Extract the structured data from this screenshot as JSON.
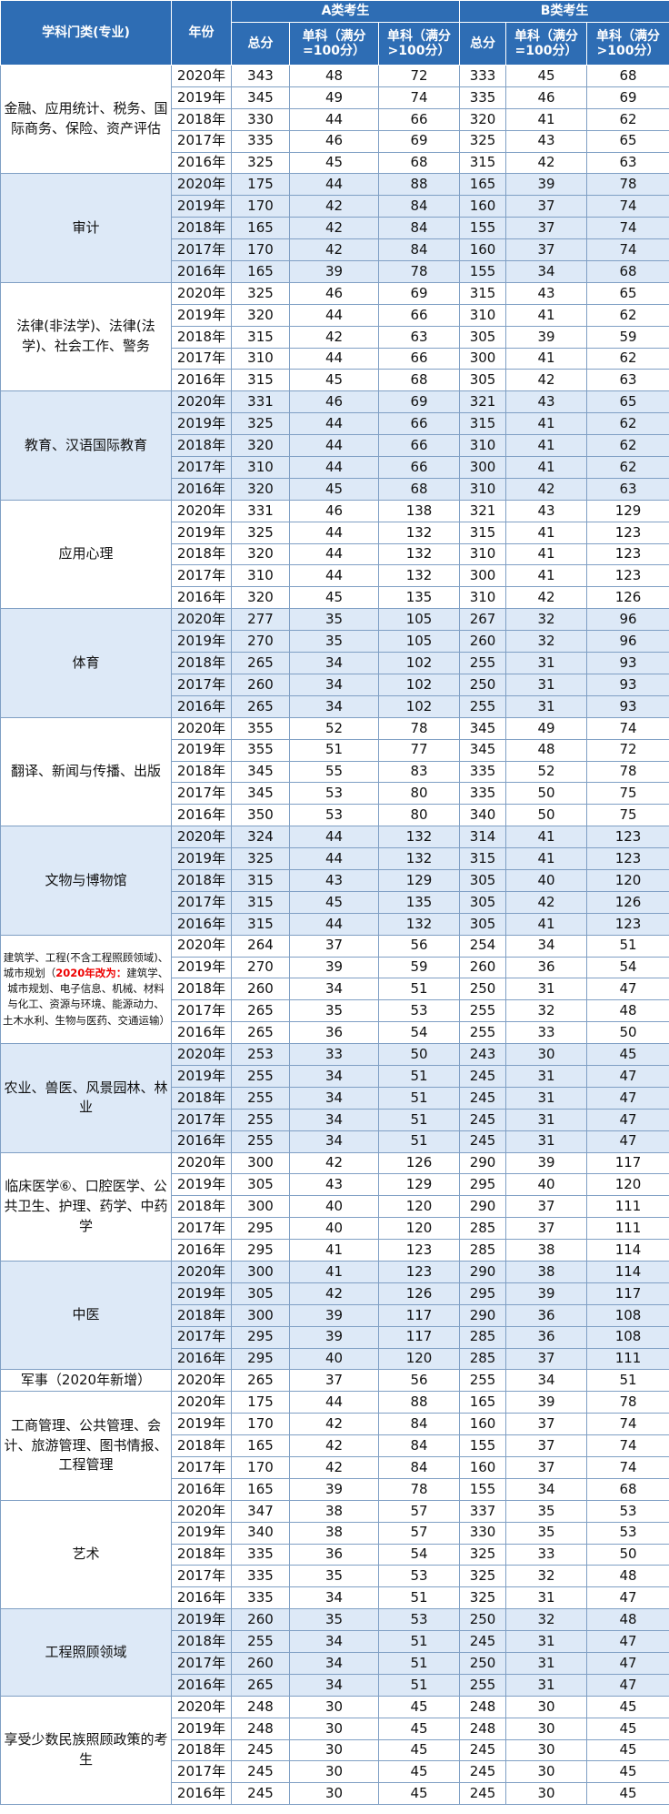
{
  "table": {
    "header": {
      "category": "学科门类(专业)",
      "year": "年份",
      "group_a": "A类考生",
      "group_b": "B类考生",
      "total": "总分",
      "single_100": "单科（满分=100分）",
      "single_over_100": "单科（满分>100分）"
    },
    "groups": [
      {
        "name": "金融、应用统计、税务、国际商务、保险、资产评估",
        "rows": [
          [
            "2020年",
            343,
            48,
            72,
            333,
            45,
            68
          ],
          [
            "2019年",
            345,
            49,
            74,
            335,
            46,
            69
          ],
          [
            "2018年",
            330,
            44,
            66,
            320,
            41,
            62
          ],
          [
            "2017年",
            335,
            46,
            69,
            325,
            43,
            65
          ],
          [
            "2016年",
            325,
            45,
            68,
            315,
            42,
            63
          ]
        ]
      },
      {
        "name": "审计",
        "rows": [
          [
            "2020年",
            175,
            44,
            88,
            165,
            39,
            78
          ],
          [
            "2019年",
            170,
            42,
            84,
            160,
            37,
            74
          ],
          [
            "2018年",
            165,
            42,
            84,
            155,
            37,
            74
          ],
          [
            "2017年",
            170,
            42,
            84,
            160,
            37,
            74
          ],
          [
            "2016年",
            165,
            39,
            78,
            155,
            34,
            68
          ]
        ]
      },
      {
        "name": "法律(非法学)、法律(法学)、社会工作、警务",
        "rows": [
          [
            "2020年",
            325,
            46,
            69,
            315,
            43,
            65
          ],
          [
            "2019年",
            320,
            44,
            66,
            310,
            41,
            62
          ],
          [
            "2018年",
            315,
            42,
            63,
            305,
            39,
            59
          ],
          [
            "2017年",
            310,
            44,
            66,
            300,
            41,
            62
          ],
          [
            "2016年",
            315,
            45,
            68,
            305,
            42,
            63
          ]
        ]
      },
      {
        "name": "教育、汉语国际教育",
        "rows": [
          [
            "2020年",
            331,
            46,
            69,
            321,
            43,
            65
          ],
          [
            "2019年",
            325,
            44,
            66,
            315,
            41,
            62
          ],
          [
            "2018年",
            320,
            44,
            66,
            310,
            41,
            62
          ],
          [
            "2017年",
            310,
            44,
            66,
            300,
            41,
            62
          ],
          [
            "2016年",
            320,
            45,
            68,
            310,
            42,
            63
          ]
        ]
      },
      {
        "name": "应用心理",
        "rows": [
          [
            "2020年",
            331,
            46,
            138,
            321,
            43,
            129
          ],
          [
            "2019年",
            325,
            44,
            132,
            315,
            41,
            123
          ],
          [
            "2018年",
            320,
            44,
            132,
            310,
            41,
            123
          ],
          [
            "2017年",
            310,
            44,
            132,
            300,
            41,
            123
          ],
          [
            "2016年",
            320,
            45,
            135,
            310,
            42,
            126
          ]
        ]
      },
      {
        "name": "体育",
        "rows": [
          [
            "2020年",
            277,
            35,
            105,
            267,
            32,
            96
          ],
          [
            "2019年",
            270,
            35,
            105,
            260,
            32,
            96
          ],
          [
            "2018年",
            265,
            34,
            102,
            255,
            31,
            93
          ],
          [
            "2017年",
            260,
            34,
            102,
            250,
            31,
            93
          ],
          [
            "2016年",
            265,
            34,
            102,
            255,
            31,
            93
          ]
        ]
      },
      {
        "name": "翻译、新闻与传播、出版",
        "rows": [
          [
            "2020年",
            355,
            52,
            78,
            345,
            49,
            74
          ],
          [
            "2019年",
            355,
            51,
            77,
            345,
            48,
            72
          ],
          [
            "2018年",
            345,
            55,
            83,
            335,
            52,
            78
          ],
          [
            "2017年",
            345,
            53,
            80,
            335,
            50,
            75
          ],
          [
            "2016年",
            350,
            53,
            80,
            340,
            50,
            75
          ]
        ]
      },
      {
        "name": "文物与博物馆",
        "rows": [
          [
            "2020年",
            324,
            44,
            132,
            314,
            41,
            123
          ],
          [
            "2019年",
            325,
            44,
            132,
            315,
            41,
            123
          ],
          [
            "2018年",
            315,
            43,
            129,
            305,
            40,
            120
          ],
          [
            "2017年",
            315,
            45,
            135,
            305,
            42,
            126
          ],
          [
            "2016年",
            315,
            44,
            132,
            305,
            41,
            123
          ]
        ]
      },
      {
        "name": [
          "建筑学、工程(不含工程照顾领域)、城市规划（",
          "2020年改为：",
          "建筑学、城市规划、电子信息、机械、材料与化工、资源与环境、能源动力、土木水利、生物与医药、交通运输）"
        ],
        "rows": [
          [
            "2020年",
            264,
            37,
            56,
            254,
            34,
            51
          ],
          [
            "2019年",
            270,
            39,
            59,
            260,
            36,
            54
          ],
          [
            "2018年",
            260,
            34,
            51,
            250,
            31,
            47
          ],
          [
            "2017年",
            265,
            35,
            53,
            255,
            32,
            48
          ],
          [
            "2016年",
            265,
            36,
            54,
            255,
            33,
            50
          ]
        ]
      },
      {
        "name": "农业、兽医、风景园林、林业",
        "rows": [
          [
            "2020年",
            253,
            33,
            50,
            243,
            30,
            45
          ],
          [
            "2019年",
            255,
            34,
            51,
            245,
            31,
            47
          ],
          [
            "2018年",
            255,
            34,
            51,
            245,
            31,
            47
          ],
          [
            "2017年",
            255,
            34,
            51,
            245,
            31,
            47
          ],
          [
            "2016年",
            255,
            34,
            51,
            245,
            31,
            47
          ]
        ]
      },
      {
        "name": "临床医学⑥、口腔医学、公共卫生、护理、药学、中药学",
        "rows": [
          [
            "2020年",
            300,
            42,
            126,
            290,
            39,
            117
          ],
          [
            "2019年",
            305,
            43,
            129,
            295,
            40,
            120
          ],
          [
            "2018年",
            300,
            40,
            120,
            290,
            37,
            111
          ],
          [
            "2017年",
            295,
            40,
            120,
            285,
            37,
            111
          ],
          [
            "2016年",
            295,
            41,
            123,
            285,
            38,
            114
          ]
        ]
      },
      {
        "name": "中医",
        "rows": [
          [
            "2020年",
            300,
            41,
            123,
            290,
            38,
            114
          ],
          [
            "2019年",
            305,
            42,
            126,
            295,
            39,
            117
          ],
          [
            "2018年",
            300,
            39,
            117,
            290,
            36,
            108
          ],
          [
            "2017年",
            295,
            39,
            117,
            285,
            36,
            108
          ],
          [
            "2016年",
            295,
            40,
            120,
            285,
            37,
            111
          ]
        ]
      },
      {
        "name": "军事（2020年新增）",
        "rows": [
          [
            "2020年",
            265,
            37,
            56,
            255,
            34,
            51
          ]
        ]
      },
      {
        "name": "工商管理、公共管理、会计、旅游管理、图书情报、工程管理",
        "rows": [
          [
            "2020年",
            175,
            44,
            88,
            165,
            39,
            78
          ],
          [
            "2019年",
            170,
            42,
            84,
            160,
            37,
            74
          ],
          [
            "2018年",
            165,
            42,
            84,
            155,
            37,
            74
          ],
          [
            "2017年",
            170,
            42,
            84,
            160,
            37,
            74
          ],
          [
            "2016年",
            165,
            39,
            78,
            155,
            34,
            68
          ]
        ]
      },
      {
        "name": "艺术",
        "rows": [
          [
            "2020年",
            347,
            38,
            57,
            337,
            35,
            53
          ],
          [
            "2019年",
            340,
            38,
            57,
            330,
            35,
            53
          ],
          [
            "2018年",
            335,
            36,
            54,
            325,
            33,
            50
          ],
          [
            "2017年",
            335,
            35,
            53,
            325,
            32,
            48
          ],
          [
            "2016年",
            335,
            34,
            51,
            325,
            31,
            47
          ]
        ]
      },
      {
        "name": "工程照顾领域",
        "rows": [
          [
            "2019年",
            260,
            35,
            53,
            250,
            32,
            48
          ],
          [
            "2018年",
            255,
            34,
            51,
            245,
            31,
            47
          ],
          [
            "2017年",
            260,
            34,
            51,
            250,
            31,
            47
          ],
          [
            "2016年",
            265,
            34,
            51,
            255,
            31,
            47
          ]
        ]
      },
      {
        "name": "享受少数民族照顾政策的考生",
        "rows": [
          [
            "2020年",
            248,
            30,
            45,
            248,
            30,
            45
          ],
          [
            "2019年",
            248,
            30,
            45,
            248,
            30,
            45
          ],
          [
            "2018年",
            245,
            30,
            45,
            245,
            30,
            45
          ],
          [
            "2017年",
            245,
            30,
            45,
            245,
            30,
            45
          ],
          [
            "2016年",
            245,
            30,
            45,
            245,
            30,
            45
          ]
        ]
      }
    ]
  }
}
